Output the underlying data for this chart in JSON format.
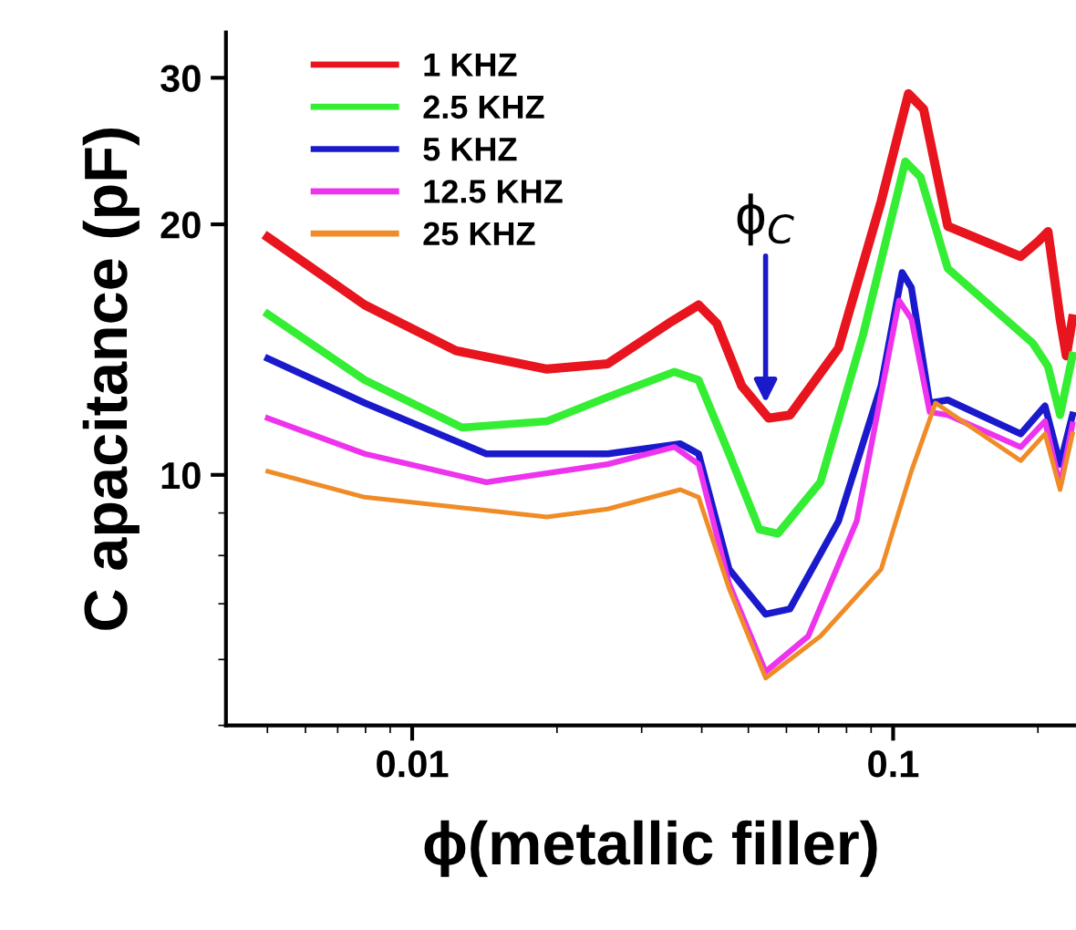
{
  "chart_data": {
    "type": "line",
    "xlabel": "ϕ(metallic filler)",
    "ylabel": "C apacitance (pF)",
    "log": "xy",
    "xlim": [
      0.0041,
      0.24
    ],
    "ylim": [
      5,
      34
    ],
    "xticks": [
      0.01,
      0.1
    ],
    "yticks": [
      10,
      20,
      30
    ],
    "grid": false,
    "legend": "top left",
    "marker": "none",
    "line_style": "solid",
    "annotations": [
      {
        "text": "ϕ$_{C}$",
        "x": 0.0543,
        "y": 12.2
      }
    ],
    "series": [
      {
        "name": "1 KHZ",
        "color": "#e8141e",
        "x": [
          0.00501,
          0.00797,
          0.01233,
          0.01907,
          0.02551,
          0.0341,
          0.0394,
          0.043,
          0.0484,
          0.0551,
          0.061,
          0.077,
          0.0944,
          0.1076,
          0.1157,
          0.1299,
          0.1842,
          0.2008,
          0.2099,
          0.2224,
          0.2291,
          0.236
        ],
        "values": [
          19.3,
          16.0,
          14.1,
          13.4,
          13.6,
          15.2,
          16.0,
          15.2,
          12.8,
          11.7,
          11.8,
          14.2,
          21.3,
          28.7,
          27.5,
          19.9,
          18.3,
          19.1,
          19.6,
          15.4,
          13.9,
          15.4
        ]
      },
      {
        "name": "2.5 KHZ",
        "color": "#33ee33",
        "x": [
          0.00501,
          0.00797,
          0.01269,
          0.01907,
          0.02551,
          0.0351,
          0.0394,
          0.0456,
          0.0527,
          0.0576,
          0.0706,
          0.0865,
          0.106,
          0.114,
          0.1299,
          0.195,
          0.2099,
          0.2224,
          0.236
        ],
        "values": [
          15.6,
          13.0,
          11.4,
          11.6,
          12.4,
          13.3,
          13.0,
          10.6,
          8.6,
          8.5,
          9.8,
          14.7,
          23.8,
          22.8,
          17.7,
          14.4,
          13.5,
          11.8,
          13.9
        ]
      },
      {
        "name": "5 KHZ",
        "color": "#1a1acc",
        "x": [
          0.00501,
          0.00797,
          0.01426,
          0.02551,
          0.0361,
          0.0394,
          0.0456,
          0.0543,
          0.061,
          0.077,
          0.0944,
          0.1044,
          0.1091,
          0.1191,
          0.1299,
          0.1842,
          0.2069,
          0.2224,
          0.236
        ],
        "values": [
          13.8,
          12.2,
          10.6,
          10.6,
          10.9,
          10.6,
          7.7,
          6.8,
          6.9,
          8.8,
          12.8,
          17.5,
          16.8,
          12.2,
          12.3,
          11.2,
          12.1,
          10.3,
          11.8
        ]
      },
      {
        "name": "12.5 KHZ",
        "color": "#ee33ee",
        "x": [
          0.00501,
          0.00797,
          0.01426,
          0.02551,
          0.0351,
          0.0394,
          0.0456,
          0.0543,
          0.0666,
          0.084,
          0.1029,
          0.1091,
          0.1191,
          0.1299,
          0.1842,
          0.2069,
          0.2224,
          0.236
        ],
        "values": [
          11.7,
          10.6,
          9.8,
          10.3,
          10.8,
          10.3,
          7.4,
          5.8,
          6.4,
          8.8,
          16.2,
          15.4,
          11.9,
          11.8,
          10.8,
          11.6,
          9.7,
          11.5
        ]
      },
      {
        "name": "25 KHZ",
        "color": "#f08c28",
        "x": [
          0.00501,
          0.00797,
          0.01907,
          0.02551,
          0.0361,
          0.0394,
          0.0456,
          0.0543,
          0.0706,
          0.0944,
          0.1091,
          0.1225,
          0.1842,
          0.2069,
          0.2224,
          0.236
        ],
        "values": [
          10.1,
          9.4,
          8.9,
          9.1,
          9.6,
          9.4,
          7.3,
          5.7,
          6.4,
          7.7,
          10.1,
          12.2,
          10.4,
          11.2,
          9.6,
          11.2
        ]
      }
    ]
  }
}
